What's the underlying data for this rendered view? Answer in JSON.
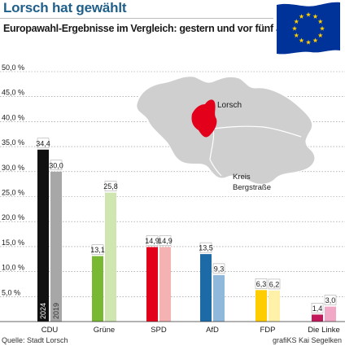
{
  "header": {
    "title": "Lorsch hat gewählt",
    "subtitle": "Europawahl-Ergebnisse im Vergleich: gestern und vor fünf Jahren"
  },
  "map": {
    "town_label": "Lorsch",
    "district_label_line1": "Kreis",
    "district_label_line2": "Bergstraße"
  },
  "footer": {
    "source": "Quelle: Stadt Lorsch",
    "credit": "grafiKS Kai Segelken"
  },
  "chart_data": {
    "type": "bar",
    "categories": [
      "CDU",
      "Grüne",
      "SPD",
      "AfD",
      "FDP",
      "Die Linke"
    ],
    "series": [
      {
        "name": "2024",
        "values": [
          34.4,
          13.1,
          14.9,
          13.5,
          6.3,
          1.4
        ]
      },
      {
        "name": "2019",
        "values": [
          30.0,
          25.8,
          14.9,
          9.3,
          6.2,
          3.0
        ]
      }
    ],
    "value_labels": {
      "2024": [
        "34,4",
        "13,1",
        "14,9",
        "13,5",
        "6,3",
        "1,4"
      ],
      "2019": [
        "30,0",
        "25,8",
        "14,9",
        "9,3",
        "6,2",
        "3,0"
      ]
    },
    "colors_2024": [
      "#111111",
      "#78b832",
      "#e2001a",
      "#1c6aa6",
      "#ffcc00",
      "#c2185b"
    ],
    "colors_2019": [
      "#a7a7a7",
      "#cfe6b0",
      "#f4b2b2",
      "#8fb8db",
      "#fff1a8",
      "#f1a7c6"
    ],
    "yticks": [
      5,
      10,
      15,
      20,
      25,
      30,
      35,
      40,
      45,
      50
    ],
    "ytick_labels": [
      "5,0 %",
      "10,0 %",
      "15,0 %",
      "20,0 %",
      "25,0 %",
      "30,0 %",
      "35,0 %",
      "40,0 %",
      "45,0 %",
      "50,0 %"
    ],
    "ylim": [
      0,
      50
    ],
    "grid": true
  }
}
